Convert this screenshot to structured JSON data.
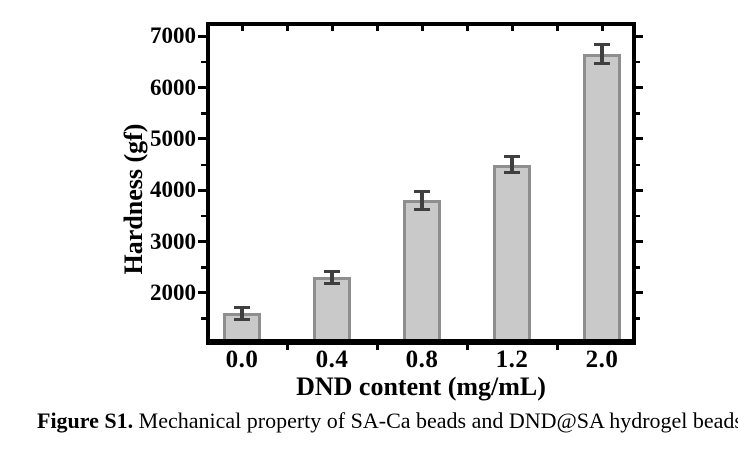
{
  "figure": {
    "label": "Figure S1.",
    "caption": "Mechanical property of SA-Ca beads and DND@SA hydrogel beads."
  },
  "chart_data": {
    "type": "bar",
    "title": "",
    "categories": [
      "0.0",
      "0.4",
      "0.8",
      "1.2",
      "2.0"
    ],
    "values": [
      1600,
      2300,
      3800,
      4500,
      6650
    ],
    "errors": [
      120,
      120,
      180,
      160,
      180
    ],
    "xlabel": "DND content (mg/mL)",
    "ylabel": "Hardness (gf)",
    "ylim": [
      1100,
      7200
    ],
    "yticks": [
      2000,
      3000,
      4000,
      5000,
      6000,
      7000
    ],
    "yminorticks": [
      1500,
      2500,
      3500,
      4500,
      5500,
      6500
    ],
    "grid": false,
    "legend_position": "none",
    "colors": {
      "bar_fill": "#c9c9c9",
      "bar_border": "#8e8e8e",
      "error_bar": "#3f3f3f",
      "axis": "#000000",
      "text": "#000000",
      "background": "#ffffff"
    }
  }
}
